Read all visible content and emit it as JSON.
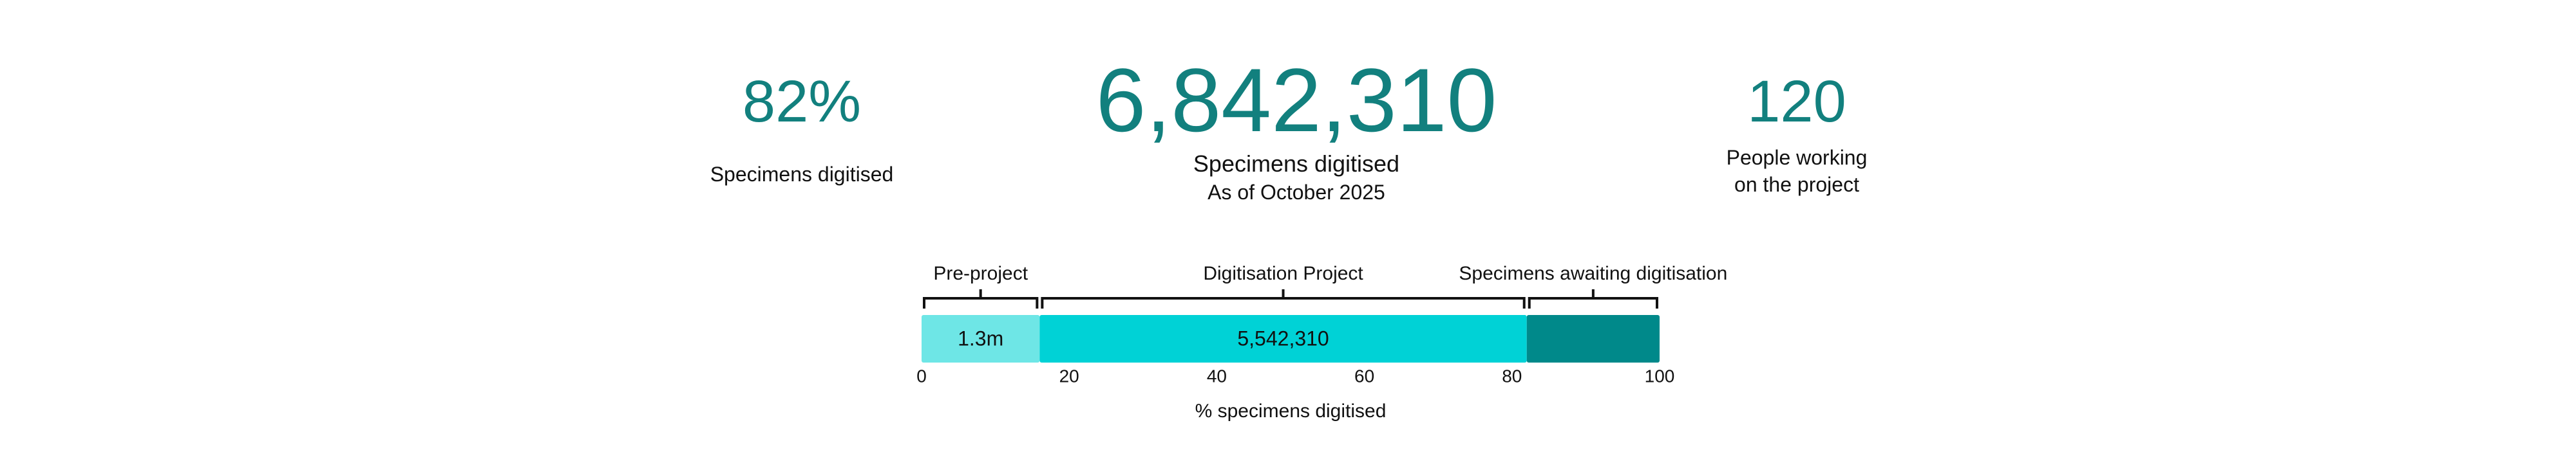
{
  "stats": [
    {
      "value": "82%",
      "label": "Specimens digitised"
    },
    {
      "value": "6,842,310",
      "label": "Specimens digitised",
      "note": "As of October 2025"
    },
    {
      "value": "120",
      "label": "People working on the project"
    }
  ],
  "chart_data": {
    "type": "stacked-bar",
    "xlabel": "% specimens digitised",
    "xlim": [
      0,
      100
    ],
    "xticks": [
      0,
      20,
      40,
      60,
      80,
      100
    ],
    "series": [
      {
        "name": "Pre-project",
        "color": "#6ee6e6",
        "values": [
          16
        ],
        "label": "1.3m"
      },
      {
        "name": "Digitisation Project",
        "color": "#00d2d6",
        "values": [
          66
        ],
        "label": "5,542,310"
      },
      {
        "name": "Specimens awaiting digitisation",
        "color": "#00898a",
        "values": [
          18
        ],
        "label": null
      }
    ]
  }
}
